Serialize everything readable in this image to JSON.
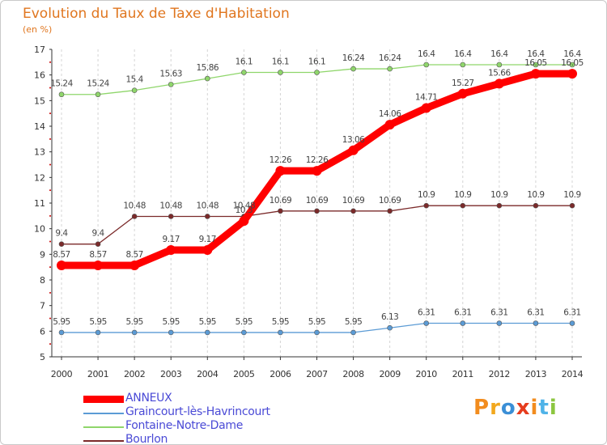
{
  "header": {
    "title": "Evolution du Taux de Taxe d'Habitation",
    "unit": "(en %)"
  },
  "logo": {
    "letters": [
      "P",
      "r",
      "o",
      "x",
      "i",
      "t",
      "i"
    ],
    "colors": [
      "#f28c1e",
      "#f2a81e",
      "#3b8fd6",
      "#e63c1e",
      "#f28c1e",
      "#4fb3e8",
      "#8cc63f"
    ]
  },
  "chart_data": {
    "type": "line",
    "x": [
      2000,
      2001,
      2002,
      2003,
      2004,
      2005,
      2006,
      2007,
      2008,
      2009,
      2010,
      2011,
      2012,
      2013,
      2014
    ],
    "x_tick_labels": [
      "2000",
      "2001",
      "2002",
      "2003",
      "2004",
      "2005",
      "2006",
      "2007",
      "2008",
      "2009",
      "2010",
      "2011",
      "2012",
      "2013",
      "2014"
    ],
    "ylim": [
      5,
      17
    ],
    "y_ticks": [
      5,
      6,
      7,
      8,
      9,
      10,
      11,
      12,
      13,
      14,
      15,
      16,
      17
    ],
    "y_tick_labels": [
      "5",
      "6",
      "7",
      "8",
      "9",
      "10",
      "11",
      "12",
      "13",
      "14",
      "15",
      "16",
      "17"
    ],
    "grid": "vertical",
    "legend_position": "bottom-left",
    "series": [
      {
        "name": "ANNEUX",
        "color": "#ff0000",
        "values": [
          8.57,
          8.57,
          8.57,
          9.17,
          9.17,
          10.3,
          12.26,
          12.26,
          13.06,
          14.06,
          14.71,
          15.27,
          15.66,
          16.05,
          16.05
        ],
        "labels": [
          "8.57",
          "8.57",
          "8.57",
          "9.17",
          "9.17",
          "10.3",
          "12.26",
          "12.26",
          "13.06",
          "14.06",
          "14.71",
          "15.27",
          "15.66",
          "16.05",
          "16.05"
        ]
      },
      {
        "name": "Graincourt-lès-Havrincourt",
        "color": "#5b9bd5",
        "values": [
          5.95,
          5.95,
          5.95,
          5.95,
          5.95,
          5.95,
          5.95,
          5.95,
          5.95,
          6.13,
          6.31,
          6.31,
          6.31,
          6.31,
          6.31
        ],
        "labels": [
          "5.95",
          "5.95",
          "5.95",
          "5.95",
          "5.95",
          "5.95",
          "5.95",
          "5.95",
          "5.95",
          "6.13",
          "6.31",
          "6.31",
          "6.31",
          "6.31",
          "6.31"
        ]
      },
      {
        "name": "Fontaine-Notre-Dame",
        "color": "#8fd66b",
        "values": [
          15.24,
          15.24,
          15.4,
          15.63,
          15.86,
          16.1,
          16.1,
          16.1,
          16.24,
          16.24,
          16.4,
          16.4,
          16.4,
          16.4,
          16.4
        ],
        "labels": [
          "15.24",
          "15.24",
          "15.4",
          "15.63",
          "15.86",
          "16.1",
          "16.1",
          "16.1",
          "16.24",
          "16.24",
          "16.4",
          "16.4",
          "16.4",
          "16.4",
          "16.4"
        ]
      },
      {
        "name": "Bourlon",
        "color": "#7b2a2a",
        "values": [
          9.4,
          9.4,
          10.48,
          10.48,
          10.48,
          10.48,
          10.69,
          10.69,
          10.69,
          10.69,
          10.9,
          10.9,
          10.9,
          10.9,
          10.9
        ],
        "labels": [
          "9.4",
          "9.4",
          "10.48",
          "10.48",
          "10.48",
          "10.48",
          "10.69",
          "10.69",
          "10.69",
          "10.69",
          "10.9",
          "10.9",
          "10.9",
          "10.9",
          "10.9"
        ]
      }
    ]
  }
}
